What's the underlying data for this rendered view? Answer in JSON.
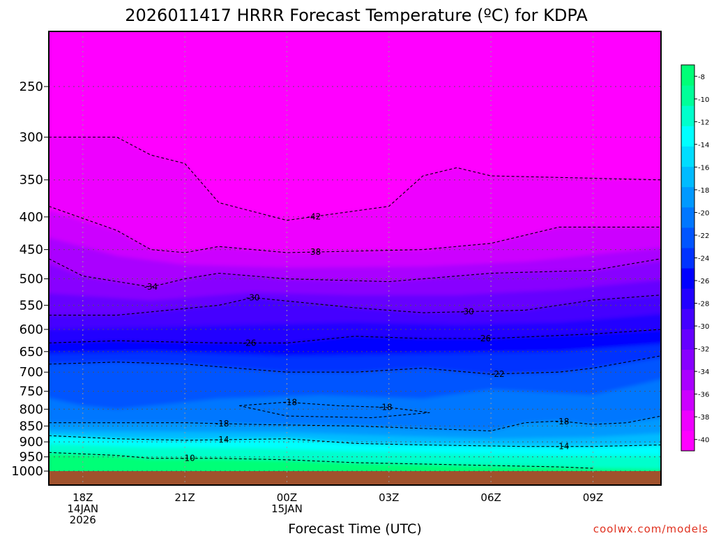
{
  "title": "2026011417 HRRR Forecast Temperature (ºC) for KDPA",
  "credit": "coolwx.com/models",
  "colors": {
    "ground": "#a0522d",
    "credit": "#e0301e",
    "palette": [
      "#ff00ff",
      "#ee00ff",
      "#cc00ff",
      "#aa00ff",
      "#8800ff",
      "#6600ff",
      "#4400ff",
      "#2200ff",
      "#0000ff",
      "#0033ff",
      "#0055ff",
      "#0077ff",
      "#0099ff",
      "#00bbff",
      "#00ddff",
      "#00ffff",
      "#00ffcc",
      "#00ff99",
      "#00ff77"
    ]
  },
  "chart_data": {
    "type": "heatmap",
    "title": "2026011417 HRRR Forecast Temperature (ºC) for KDPA",
    "xlabel": "Forecast Time (UTC)",
    "ylabel": "",
    "y_scale": "log pressure (inverted)",
    "ylim": [
      1000,
      200
    ],
    "xlim": [
      "14 Jan 2026 17Z",
      "15 Jan 2026 11Z"
    ],
    "grid": true,
    "y_ticks": [
      250,
      300,
      350,
      400,
      450,
      500,
      550,
      600,
      650,
      700,
      750,
      800,
      850,
      900,
      950,
      1000
    ],
    "x_ticks": [
      {
        "line1": "18Z",
        "line2": "14JAN",
        "line3": "2026",
        "hour": 18
      },
      {
        "line1": "21Z",
        "line2": "",
        "line3": "",
        "hour": 21
      },
      {
        "line1": "00Z",
        "line2": "15JAN",
        "line3": "",
        "hour": 24
      },
      {
        "line1": "03Z",
        "line2": "",
        "line3": "",
        "hour": 27
      },
      {
        "line1": "06Z",
        "line2": "",
        "line3": "",
        "hour": 30
      },
      {
        "line1": "09Z",
        "line2": "",
        "line3": "",
        "hour": 33
      }
    ],
    "colorbar": {
      "labels": [
        "-8",
        "-10",
        "-12",
        "-14",
        "-16",
        "-18",
        "-20",
        "-22",
        "-24",
        "-26",
        "-28",
        "-30",
        "-32",
        "-34",
        "-36",
        "-38",
        "-40"
      ],
      "range": [
        -41,
        -7
      ]
    },
    "contours": [
      {
        "label": "-42",
        "pts": [
          [
            17,
            300
          ],
          [
            19,
            300
          ],
          [
            20,
            320
          ],
          [
            21,
            330
          ],
          [
            22,
            380
          ],
          [
            24,
            405
          ],
          [
            27,
            385
          ],
          [
            28,
            345
          ],
          [
            29,
            335
          ],
          [
            30,
            345
          ],
          [
            35,
            350
          ]
        ],
        "label_hours": [
          24.8
        ]
      },
      {
        "label": "-38",
        "pts": [
          [
            17,
            385
          ],
          [
            19,
            420
          ],
          [
            20,
            450
          ],
          [
            21,
            455
          ],
          [
            22,
            445
          ],
          [
            24,
            455
          ],
          [
            28,
            450
          ],
          [
            30,
            440
          ],
          [
            32,
            415
          ],
          [
            35,
            415
          ]
        ],
        "label_hours": [
          24.8
        ]
      },
      {
        "label": "-34",
        "pts": [
          [
            17,
            465
          ],
          [
            18,
            495
          ],
          [
            20,
            515
          ],
          [
            21,
            500
          ],
          [
            22,
            490
          ],
          [
            24,
            500
          ],
          [
            27,
            505
          ],
          [
            30,
            490
          ],
          [
            33,
            485
          ],
          [
            35,
            465
          ]
        ],
        "label_hours": [
          20.0
        ]
      },
      {
        "label": "-30",
        "pts": [
          [
            17,
            570
          ],
          [
            19,
            570
          ],
          [
            22,
            550
          ],
          [
            23,
            535
          ],
          [
            26,
            555
          ],
          [
            28,
            565
          ],
          [
            31,
            560
          ],
          [
            33,
            540
          ],
          [
            35,
            530
          ]
        ],
        "label_hours": [
          23.0,
          29.3
        ]
      },
      {
        "label": "-26",
        "pts": [
          [
            17,
            630
          ],
          [
            19,
            625
          ],
          [
            22,
            630
          ],
          [
            24,
            630
          ],
          [
            26,
            615
          ],
          [
            28,
            620
          ],
          [
            30,
            620
          ],
          [
            33,
            610
          ],
          [
            35,
            600
          ]
        ],
        "label_hours": [
          22.9,
          29.8
        ]
      },
      {
        "label": "-22",
        "pts": [
          [
            17,
            680
          ],
          [
            19,
            675
          ],
          [
            21,
            680
          ],
          [
            24,
            700
          ],
          [
            26,
            700
          ],
          [
            28,
            690
          ],
          [
            30,
            705
          ],
          [
            32,
            700
          ],
          [
            33,
            690
          ],
          [
            35,
            660
          ]
        ],
        "label_hours": [
          30.2
        ]
      },
      {
        "label": "-18",
        "pts": [
          [
            22.6,
            790
          ],
          [
            24,
            780
          ],
          [
            25.5,
            790
          ],
          [
            27,
            795
          ],
          [
            28.2,
            810
          ],
          [
            26.5,
            825
          ],
          [
            24,
            820
          ],
          [
            22.6,
            790
          ]
        ],
        "label_hours": [
          24.1,
          26.9
        ]
      },
      {
        "label": "-18",
        "pts": [
          [
            17,
            840
          ],
          [
            21,
            840
          ],
          [
            23,
            845
          ],
          [
            26,
            850
          ],
          [
            30,
            865
          ],
          [
            31,
            840
          ],
          [
            32,
            835
          ],
          [
            33,
            845
          ],
          [
            34,
            840
          ],
          [
            35,
            820
          ]
        ],
        "label_hours": [
          22.1,
          32.1
        ]
      },
      {
        "label": "-14",
        "pts": [
          [
            17,
            880
          ],
          [
            19,
            890
          ],
          [
            21,
            895
          ],
          [
            24,
            890
          ],
          [
            26,
            905
          ],
          [
            28,
            910
          ],
          [
            31,
            915
          ],
          [
            33,
            915
          ],
          [
            35,
            910
          ]
        ],
        "label_hours": [
          22.1,
          32.1
        ]
      },
      {
        "label": "-10",
        "pts": [
          [
            17,
            935
          ],
          [
            19,
            945
          ],
          [
            20,
            955
          ],
          [
            22,
            955
          ],
          [
            24,
            960
          ],
          [
            26,
            970
          ],
          [
            28,
            975
          ],
          [
            30,
            980
          ],
          [
            32,
            985
          ],
          [
            33,
            990
          ]
        ],
        "label_hours": [
          21.1
        ]
      }
    ]
  }
}
